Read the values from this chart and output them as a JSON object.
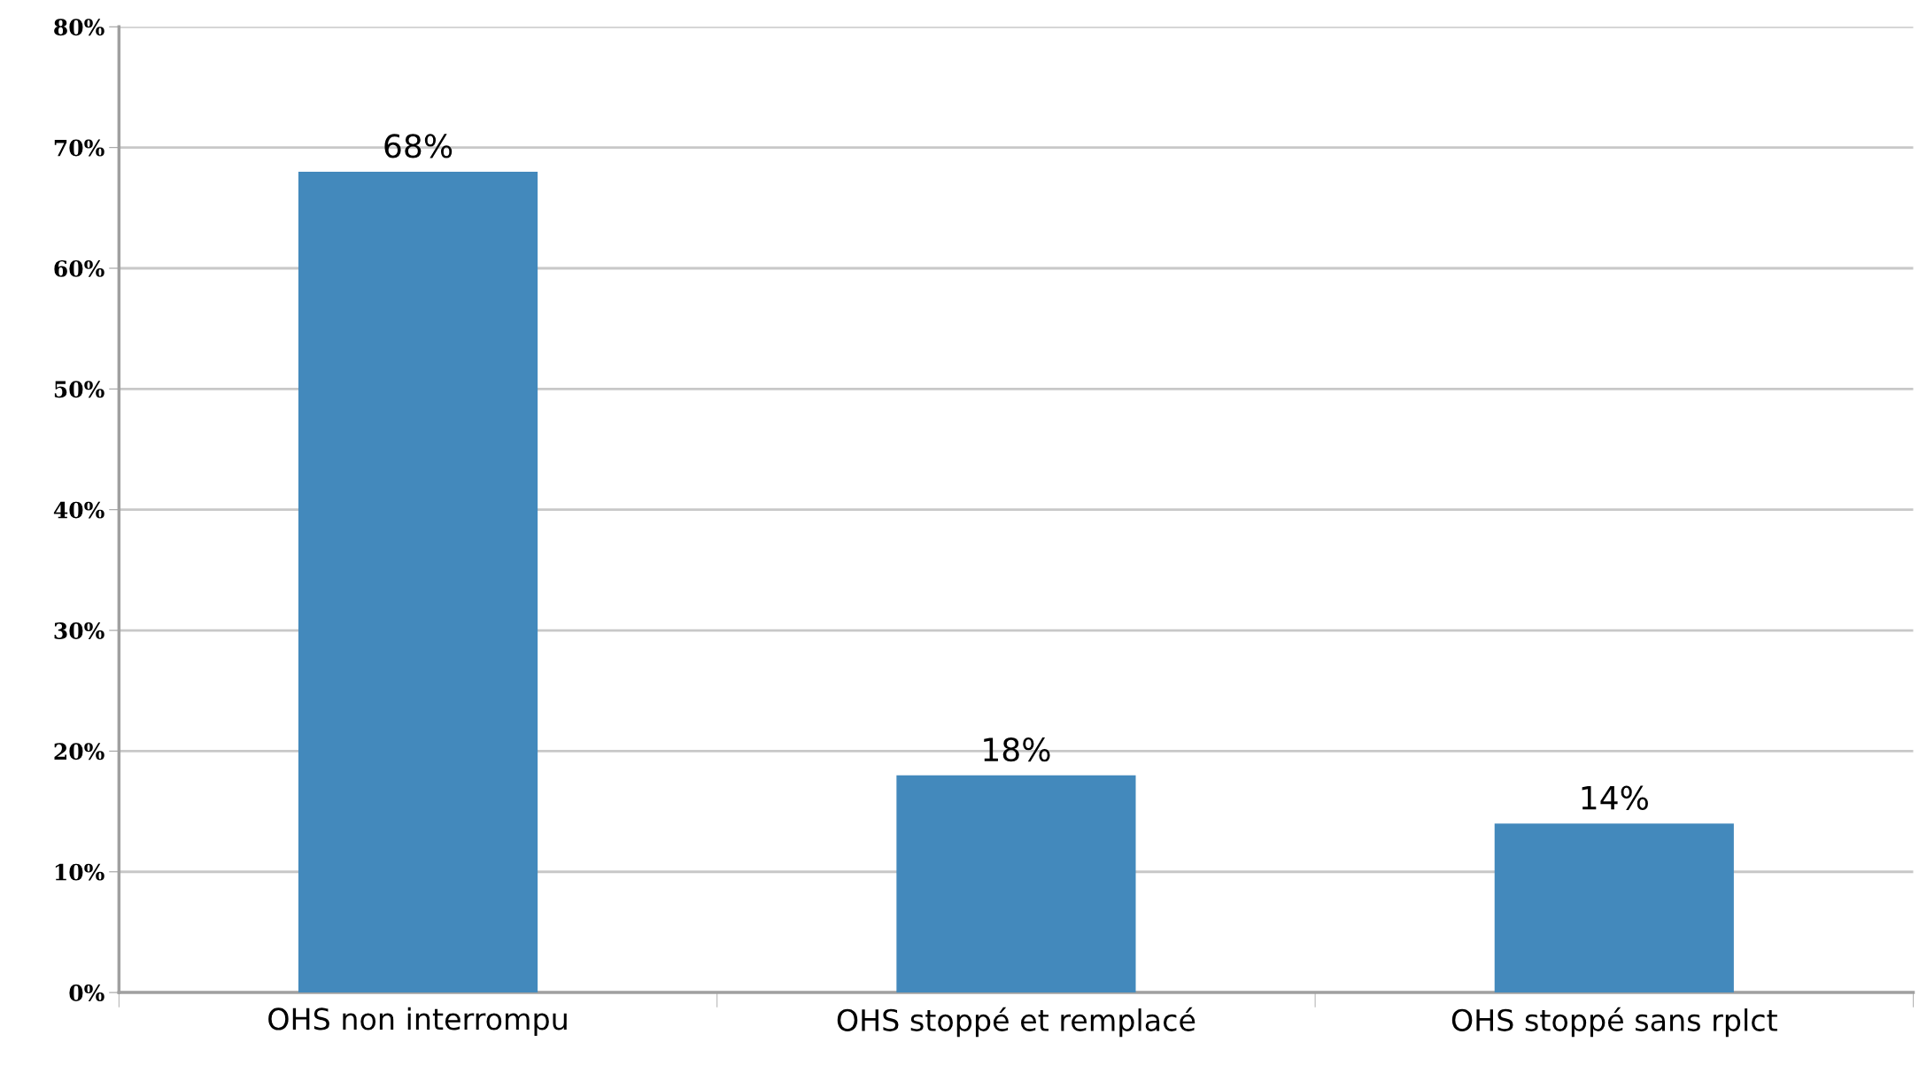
{
  "chart_data": {
    "type": "bar",
    "categories": [
      "OHS non interrompu",
      "OHS stoppé et remplacé",
      "OHS stoppé sans rplct"
    ],
    "values": [
      68,
      18,
      14
    ],
    "value_labels": [
      "68%",
      "18%",
      "14%"
    ],
    "color": "#4389bc",
    "ylim": [
      0,
      80
    ],
    "yticks": [
      {
        "value": 0,
        "label": "0%"
      },
      {
        "value": 10,
        "label": "10%"
      },
      {
        "value": 20,
        "label": "20%"
      },
      {
        "value": 30,
        "label": "30%"
      },
      {
        "value": 40,
        "label": "40%"
      },
      {
        "value": 50,
        "label": "50%"
      },
      {
        "value": 60,
        "label": "60%"
      },
      {
        "value": 70,
        "label": "70%"
      },
      {
        "value": 80,
        "label": "80%"
      }
    ],
    "grid": "y"
  }
}
